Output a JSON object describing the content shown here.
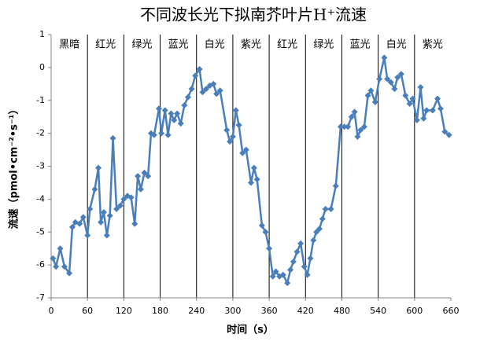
{
  "chart_data": {
    "type": "line",
    "title": "不同波长光下拟南芥叶片H⁺流速",
    "x_label": "时间（s）",
    "y_label": "流速（pmol•cm⁻²•s⁻¹）",
    "band_labels": [
      "黑暗",
      "红光",
      "绿光",
      "蓝光",
      "白光",
      "紫光",
      "红光",
      "绿光",
      "蓝光",
      "白光",
      "紫光"
    ],
    "band_edges": [
      0,
      60,
      120,
      180,
      240,
      300,
      360,
      420,
      480,
      540,
      600,
      660
    ],
    "xlim": [
      0,
      660
    ],
    "xticks": [
      0,
      60,
      120,
      180,
      240,
      300,
      360,
      420,
      480,
      540,
      600,
      660
    ],
    "ylim": [
      -7,
      1
    ],
    "yticks": [
      -7,
      -6,
      -5,
      -4,
      -3,
      -2,
      -1,
      0,
      1
    ],
    "grid": false,
    "series": [
      {
        "color": "#4a7ebb",
        "x": [
          3,
          8,
          15,
          22,
          30,
          35,
          40,
          47,
          53,
          60,
          64,
          72,
          78,
          82,
          87,
          92,
          97,
          102,
          108,
          114,
          120,
          126,
          132,
          138,
          143,
          148,
          154,
          160,
          165,
          170,
          178,
          182,
          188,
          193,
          198,
          203,
          208,
          214,
          220,
          226,
          232,
          238,
          245,
          250,
          256,
          262,
          268,
          273,
          279,
          290,
          295,
          300,
          305,
          310,
          316,
          322,
          330,
          335,
          340,
          348,
          354,
          360,
          366,
          371,
          377,
          383,
          390,
          395,
          400,
          406,
          412,
          418,
          423,
          428,
          433,
          438,
          443,
          448,
          453,
          462,
          470,
          478,
          484,
          490,
          496,
          501,
          506,
          511,
          517,
          523,
          528,
          535,
          542,
          550,
          555,
          561,
          567,
          572,
          578,
          585,
          592,
          597,
          604,
          610,
          615,
          620,
          630,
          638,
          643,
          650,
          657
        ],
        "values": [
          -5.8,
          -6.05,
          -5.5,
          -6.05,
          -6.25,
          -4.85,
          -4.7,
          -4.75,
          -4.55,
          -5.1,
          -4.3,
          -3.7,
          -3.05,
          -4.7,
          -4.4,
          -5.1,
          -4.5,
          -2.15,
          -4.3,
          -4.2,
          -4.0,
          -3.9,
          -3.95,
          -4.75,
          -3.3,
          -3.7,
          -3.2,
          -3.3,
          -2.0,
          -2.05,
          -1.25,
          -2.0,
          -1.3,
          -2.05,
          -1.4,
          -1.6,
          -1.4,
          -1.7,
          -1.15,
          -0.9,
          -0.65,
          -0.25,
          -0.05,
          -0.75,
          -0.65,
          -0.55,
          -0.5,
          -0.8,
          -0.7,
          -1.9,
          -2.25,
          -2.1,
          -1.3,
          -1.75,
          -2.6,
          -2.5,
          -3.5,
          -3.05,
          -3.4,
          -4.8,
          -5.0,
          -5.5,
          -6.35,
          -6.2,
          -6.35,
          -6.3,
          -6.55,
          -6.15,
          -5.9,
          -5.6,
          -5.35,
          -6.05,
          -6.3,
          -5.8,
          -5.25,
          -5.0,
          -4.9,
          -4.6,
          -4.3,
          -4.3,
          -3.6,
          -1.8,
          -1.8,
          -1.8,
          -1.5,
          -1.35,
          -2.1,
          -1.9,
          -1.8,
          -0.85,
          -0.7,
          -1.05,
          -0.35,
          0.3,
          -0.35,
          -0.45,
          -0.65,
          -0.3,
          -0.2,
          -0.85,
          -1.1,
          -0.95,
          -1.6,
          -0.6,
          -1.55,
          -1.3,
          -1.3,
          -0.95,
          -1.25,
          -1.95,
          -2.05
        ]
      }
    ]
  }
}
